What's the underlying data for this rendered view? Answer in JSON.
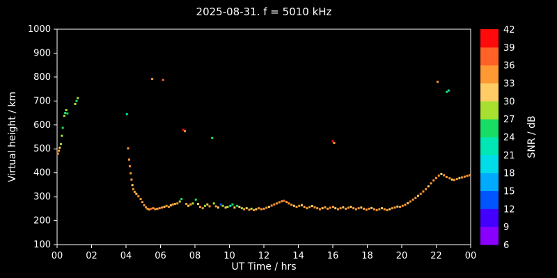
{
  "chart_data": {
    "type": "scatter",
    "title": "2025-08-31. f = 5010 kHz",
    "xlabel": "UT Time / hrs",
    "ylabel": "Virtual height / km",
    "colorbar_label": "SNR / dB",
    "xlim": [
      0,
      24
    ],
    "ylim": [
      100,
      1000
    ],
    "xticks": [
      0,
      2,
      4,
      6,
      8,
      10,
      12,
      14,
      16,
      18,
      20,
      22,
      24
    ],
    "xtick_labels": [
      "00",
      "02",
      "04",
      "06",
      "08",
      "10",
      "12",
      "14",
      "16",
      "18",
      "20",
      "22",
      "00"
    ],
    "yticks": [
      100,
      200,
      300,
      400,
      500,
      600,
      700,
      800,
      900,
      1000
    ],
    "grid": false,
    "background": "#000000",
    "axis_color": "#ffffff",
    "colorbar": {
      "min": 6,
      "max": 42,
      "ticks": [
        6,
        9,
        12,
        15,
        18,
        21,
        24,
        27,
        30,
        33,
        36,
        39,
        42
      ],
      "colors": [
        "#8a00ff",
        "#4400ff",
        "#0055ff",
        "#00aaff",
        "#00dce8",
        "#00e6b4",
        "#17dd65",
        "#a8e032",
        "#ffcc66",
        "#ff9933",
        "#ff6126",
        "#ff0a0a"
      ]
    },
    "points_format": [
      "ut_hours",
      "virtual_height_km",
      "snr_db"
    ],
    "points": [
      [
        0.05,
        480,
        33
      ],
      [
        0.1,
        492,
        33
      ],
      [
        0.15,
        505,
        30
      ],
      [
        0.22,
        520,
        27
      ],
      [
        0.28,
        555,
        27
      ],
      [
        0.33,
        588,
        24
      ],
      [
        0.42,
        638,
        27
      ],
      [
        0.47,
        650,
        24
      ],
      [
        0.53,
        662,
        27
      ],
      [
        0.6,
        648,
        24
      ],
      [
        1.05,
        688,
        27
      ],
      [
        1.13,
        700,
        24
      ],
      [
        1.2,
        712,
        27
      ],
      [
        4.05,
        645,
        21
      ],
      [
        4.12,
        502,
        33
      ],
      [
        4.18,
        455,
        33
      ],
      [
        4.22,
        428,
        33
      ],
      [
        4.27,
        398,
        33
      ],
      [
        4.32,
        372,
        33
      ],
      [
        4.37,
        348,
        30
      ],
      [
        4.42,
        332,
        33
      ],
      [
        4.5,
        320,
        33
      ],
      [
        4.6,
        312,
        30
      ],
      [
        4.72,
        302,
        33
      ],
      [
        4.85,
        290,
        33
      ],
      [
        4.95,
        278,
        33
      ],
      [
        5.05,
        265,
        33
      ],
      [
        5.15,
        256,
        33
      ],
      [
        5.25,
        250,
        33
      ],
      [
        5.35,
        247,
        33
      ],
      [
        5.45,
        250,
        36
      ],
      [
        5.52,
        792,
        33
      ],
      [
        5.58,
        252,
        33
      ],
      [
        5.7,
        248,
        33
      ],
      [
        5.82,
        250,
        33
      ],
      [
        5.95,
        252,
        33
      ],
      [
        6.08,
        255,
        33
      ],
      [
        6.15,
        788,
        36
      ],
      [
        6.22,
        258,
        30
      ],
      [
        6.35,
        262,
        33
      ],
      [
        6.48,
        258,
        33
      ],
      [
        6.6,
        264,
        30
      ],
      [
        6.72,
        268,
        33
      ],
      [
        6.85,
        270,
        33
      ],
      [
        6.98,
        272,
        33
      ],
      [
        7.12,
        280,
        27
      ],
      [
        7.22,
        290,
        24
      ],
      [
        7.32,
        580,
        39
      ],
      [
        7.42,
        574,
        33
      ],
      [
        7.5,
        270,
        33
      ],
      [
        7.62,
        262,
        30
      ],
      [
        7.75,
        268,
        33
      ],
      [
        7.88,
        272,
        27
      ],
      [
        8.05,
        288,
        24
      ],
      [
        8.18,
        270,
        30
      ],
      [
        8.3,
        258,
        33
      ],
      [
        8.45,
        252,
        33
      ],
      [
        8.58,
        262,
        27
      ],
      [
        8.72,
        268,
        30
      ],
      [
        8.85,
        260,
        33
      ],
      [
        9.0,
        546,
        24
      ],
      [
        9.1,
        272,
        27
      ],
      [
        9.22,
        260,
        33
      ],
      [
        9.35,
        255,
        30
      ],
      [
        9.5,
        268,
        12
      ],
      [
        9.62,
        262,
        27
      ],
      [
        9.78,
        255,
        30
      ],
      [
        9.9,
        258,
        27
      ],
      [
        10.05,
        262,
        21
      ],
      [
        10.18,
        268,
        24
      ],
      [
        10.3,
        255,
        30
      ],
      [
        10.45,
        262,
        24
      ],
      [
        10.58,
        258,
        30
      ],
      [
        10.72,
        252,
        27
      ],
      [
        10.85,
        248,
        33
      ],
      [
        11.0,
        252,
        30
      ],
      [
        11.15,
        246,
        33
      ],
      [
        11.28,
        250,
        27
      ],
      [
        11.42,
        244,
        33
      ],
      [
        11.55,
        248,
        30
      ],
      [
        11.7,
        252,
        33
      ],
      [
        11.85,
        248,
        33
      ],
      [
        12.0,
        250,
        33
      ],
      [
        12.15,
        254,
        33
      ],
      [
        12.3,
        258,
        30
      ],
      [
        12.45,
        263,
        33
      ],
      [
        12.6,
        268,
        33
      ],
      [
        12.75,
        272,
        33
      ],
      [
        12.9,
        277,
        33
      ],
      [
        13.05,
        281,
        33
      ],
      [
        13.18,
        283,
        36
      ],
      [
        13.32,
        278,
        33
      ],
      [
        13.45,
        272,
        33
      ],
      [
        13.6,
        267,
        33
      ],
      [
        13.75,
        262,
        30
      ],
      [
        13.9,
        258,
        33
      ],
      [
        14.05,
        262,
        33
      ],
      [
        14.2,
        265,
        30
      ],
      [
        14.35,
        258,
        33
      ],
      [
        14.5,
        252,
        33
      ],
      [
        14.65,
        257,
        33
      ],
      [
        14.8,
        261,
        30
      ],
      [
        14.95,
        256,
        33
      ],
      [
        15.1,
        252,
        33
      ],
      [
        15.25,
        248,
        33
      ],
      [
        15.4,
        252,
        30
      ],
      [
        15.55,
        256,
        33
      ],
      [
        15.7,
        250,
        33
      ],
      [
        15.85,
        254,
        33
      ],
      [
        16.0,
        532,
        39
      ],
      [
        16.08,
        525,
        33
      ],
      [
        16.02,
        258,
        33
      ],
      [
        16.15,
        252,
        30
      ],
      [
        16.3,
        248,
        33
      ],
      [
        16.45,
        252,
        33
      ],
      [
        16.6,
        256,
        30
      ],
      [
        16.75,
        250,
        33
      ],
      [
        16.9,
        254,
        33
      ],
      [
        17.05,
        258,
        30
      ],
      [
        17.2,
        252,
        33
      ],
      [
        17.35,
        248,
        33
      ],
      [
        17.5,
        252,
        33
      ],
      [
        17.65,
        255,
        30
      ],
      [
        17.8,
        250,
        33
      ],
      [
        17.95,
        246,
        33
      ],
      [
        18.1,
        250,
        33
      ],
      [
        18.25,
        253,
        30
      ],
      [
        18.4,
        248,
        33
      ],
      [
        18.55,
        244,
        33
      ],
      [
        18.7,
        248,
        33
      ],
      [
        18.85,
        252,
        30
      ],
      [
        19.0,
        248,
        33
      ],
      [
        19.15,
        244,
        33
      ],
      [
        19.3,
        248,
        30
      ],
      [
        19.45,
        252,
        33
      ],
      [
        19.6,
        255,
        33
      ],
      [
        19.75,
        259,
        30
      ],
      [
        19.9,
        258,
        33
      ],
      [
        20.05,
        262,
        33
      ],
      [
        20.2,
        267,
        33
      ],
      [
        20.35,
        273,
        30
      ],
      [
        20.5,
        280,
        33
      ],
      [
        20.65,
        288,
        33
      ],
      [
        20.8,
        296,
        33
      ],
      [
        20.95,
        304,
        30
      ],
      [
        21.1,
        312,
        33
      ],
      [
        21.25,
        322,
        33
      ],
      [
        21.4,
        332,
        33
      ],
      [
        21.55,
        344,
        30
      ],
      [
        21.7,
        356,
        33
      ],
      [
        21.85,
        368,
        33
      ],
      [
        22.0,
        378,
        33
      ],
      [
        22.08,
        780,
        33
      ],
      [
        22.15,
        388,
        33
      ],
      [
        22.3,
        395,
        30
      ],
      [
        22.45,
        390,
        33
      ],
      [
        22.6,
        383,
        33
      ],
      [
        22.62,
        738,
        24
      ],
      [
        22.72,
        744,
        21
      ],
      [
        22.78,
        377,
        33
      ],
      [
        22.92,
        372,
        30
      ],
      [
        23.05,
        370,
        33
      ],
      [
        23.2,
        374,
        33
      ],
      [
        23.35,
        378,
        30
      ],
      [
        23.5,
        381,
        33
      ],
      [
        23.65,
        384,
        33
      ],
      [
        23.8,
        387,
        33
      ],
      [
        23.95,
        390,
        33
      ]
    ]
  }
}
